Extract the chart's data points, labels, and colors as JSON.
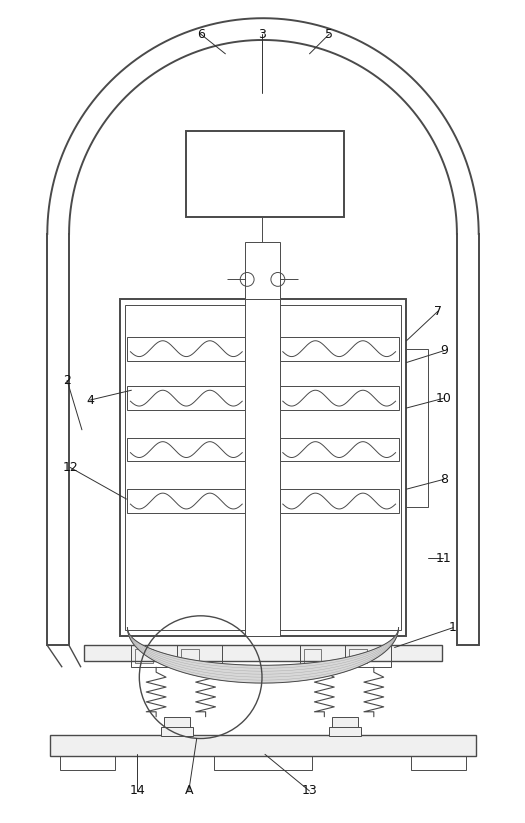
{
  "bg_color": "#ffffff",
  "line_color": "#4a4a4a",
  "fig_width": 5.25,
  "fig_height": 8.23,
  "lw_main": 1.0,
  "lw_thin": 0.7,
  "lw_thick": 1.4
}
